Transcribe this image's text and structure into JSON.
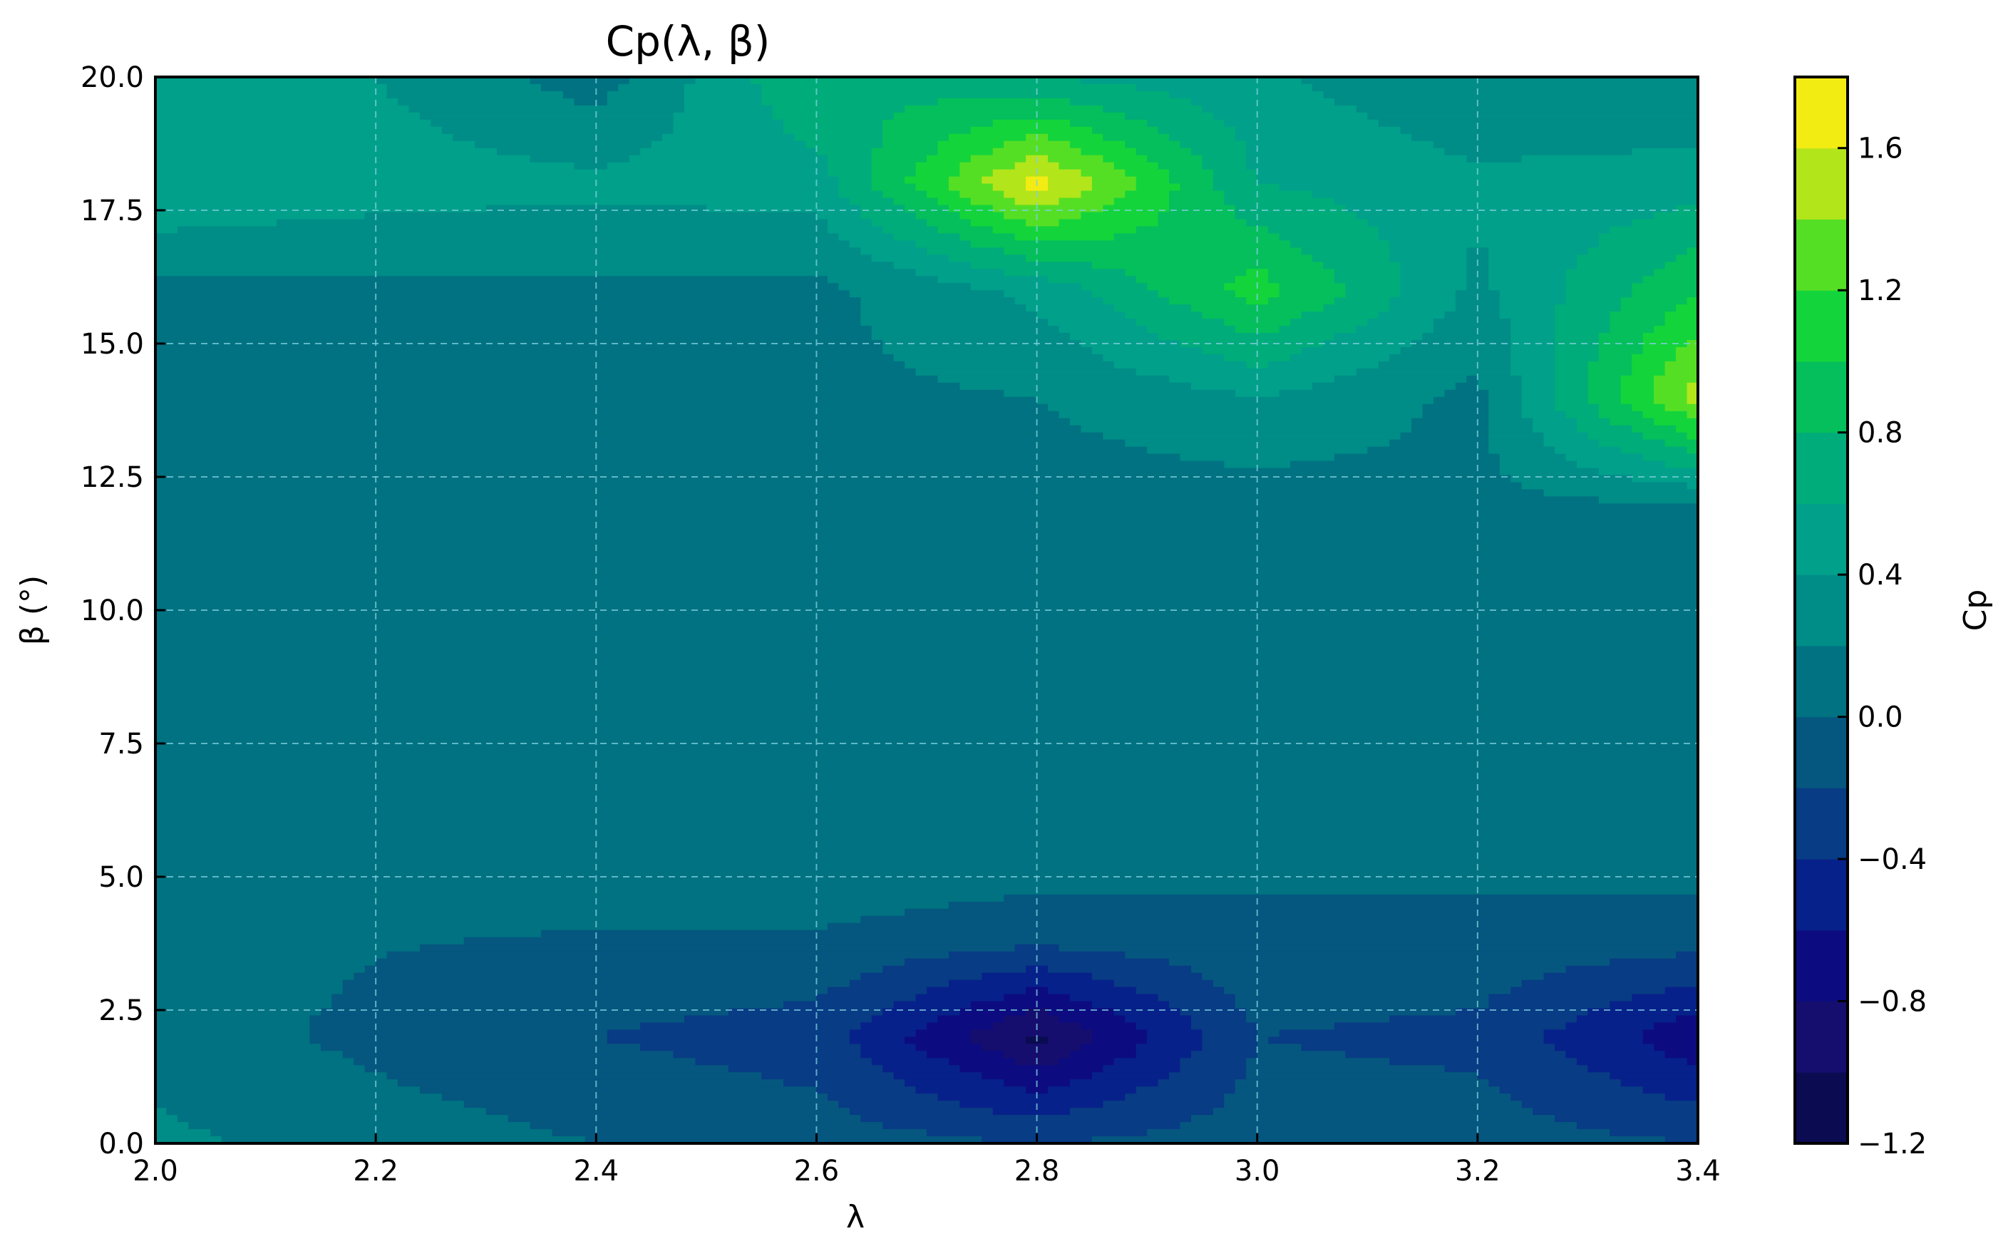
{
  "chart_data": {
    "type": "heatmap",
    "title": "Cp(λ, β)",
    "xlabel": "λ",
    "ylabel": "β (°)",
    "colorbar_label": "Cp",
    "xlim": [
      2.0,
      3.4
    ],
    "ylim": [
      0.0,
      20.0
    ],
    "x_ticks": [
      "2.0",
      "2.2",
      "2.4",
      "2.6",
      "2.8",
      "3.0",
      "3.2",
      "3.4"
    ],
    "y_ticks": [
      "0.0",
      "2.5",
      "5.0",
      "7.5",
      "10.0",
      "12.5",
      "15.0",
      "17.5",
      "20.0"
    ],
    "colorbar_range": [
      -1.2,
      1.8
    ],
    "colorbar_ticks": [
      "−1.2",
      "−0.8",
      "−0.4",
      "0.0",
      "0.4",
      "0.8",
      "1.2",
      "1.6"
    ],
    "levels": [
      -1.2,
      -1.0,
      -0.8,
      -0.6,
      -0.4,
      -0.2,
      0.0,
      0.2,
      0.4,
      0.6,
      0.8,
      1.0,
      1.2,
      1.4,
      1.6,
      1.8
    ],
    "level_colors": [
      "#0b0b52",
      "#160e6e",
      "#0c0c80",
      "#07218a",
      "#083c84",
      "#05577f",
      "#007281",
      "#008c87",
      "#00a08b",
      "#00ac7a",
      "#04bf5c",
      "#14d43b",
      "#55df24",
      "#b3e51b",
      "#f3ec13"
    ],
    "grid": true,
    "colormap": "viridis-like (navy-teal-green-yellow)",
    "x_values": [
      2.0,
      2.2,
      2.4,
      2.6,
      2.8,
      3.0,
      3.2,
      3.4
    ],
    "y_values": [
      0,
      2,
      4,
      6,
      8,
      10,
      12,
      14,
      16,
      18,
      20
    ],
    "z_values": [
      [
        0.25,
        0.1,
        0.0,
        -0.1,
        -0.2,
        -0.1,
        -0.1,
        -0.2
      ],
      [
        0.1,
        -0.05,
        -0.2,
        -0.3,
        -1.05,
        -0.2,
        -0.25,
        -0.75
      ],
      [
        0.1,
        0.02,
        0.0,
        0.0,
        -0.05,
        -0.05,
        -0.05,
        -0.05
      ],
      [
        0.1,
        0.1,
        0.1,
        0.1,
        0.1,
        0.1,
        0.1,
        0.1
      ],
      [
        0.1,
        0.1,
        0.1,
        0.1,
        0.1,
        0.1,
        0.1,
        0.1
      ],
      [
        0.1,
        0.1,
        0.1,
        0.1,
        0.1,
        0.1,
        0.1,
        0.1
      ],
      [
        0.1,
        0.1,
        0.1,
        0.1,
        0.1,
        0.1,
        0.15,
        0.2
      ],
      [
        0.1,
        0.1,
        0.1,
        0.15,
        0.2,
        0.4,
        0.15,
        1.5
      ],
      [
        0.15,
        0.15,
        0.15,
        0.15,
        0.45,
        1.1,
        0.35,
        1.0
      ],
      [
        0.6,
        0.5,
        0.45,
        0.5,
        1.7,
        0.6,
        0.45,
        0.5
      ],
      [
        0.4,
        0.4,
        0.1,
        0.8,
        0.6,
        0.45,
        0.2,
        0.2
      ]
    ]
  }
}
